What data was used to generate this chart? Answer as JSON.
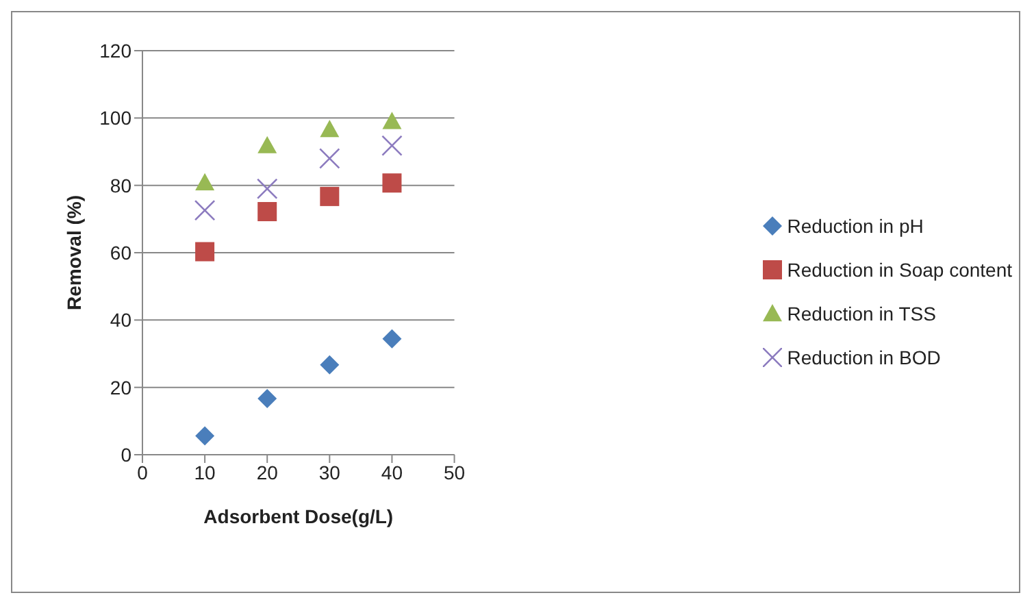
{
  "chart_data": {
    "type": "scatter",
    "xlabel": "Adsorbent Dose(g/L)",
    "ylabel": "Removal (%)",
    "x": [
      10,
      20,
      30,
      40
    ],
    "series": [
      {
        "name": "Reduction in pH",
        "color": "#4a7ebb",
        "marker": "diamond",
        "values": [
          5.6,
          16.7,
          26.7,
          34.4
        ]
      },
      {
        "name": "Reduction in Soap content",
        "color": "#be4b48",
        "marker": "square",
        "values": [
          60.3,
          72.2,
          76.7,
          80.7
        ]
      },
      {
        "name": "Reduction in TSS",
        "color": "#98b954",
        "marker": "triangle",
        "values": [
          80.8,
          91.8,
          96.6,
          99
        ]
      },
      {
        "name": "Reduction in BOD",
        "color": "#8c7bbf",
        "marker": "cross",
        "values": [
          72.6,
          79,
          88,
          91.8
        ]
      }
    ],
    "xlim": [
      0,
      50
    ],
    "xticks": [
      0,
      10,
      20,
      30,
      40,
      50
    ],
    "ylim": [
      0,
      120
    ],
    "yticks": [
      0,
      20,
      40,
      60,
      80,
      100,
      120
    ],
    "grid": "y",
    "legend": "right"
  }
}
